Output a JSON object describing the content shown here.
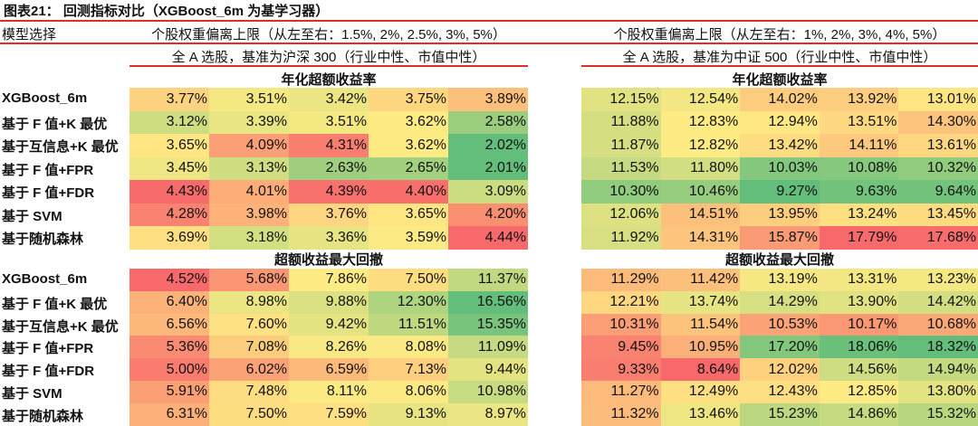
{
  "title": "图表21：  回测指标对比（XGBoost_6m 为基学习器）",
  "header": {
    "model_label": "模型选择",
    "left_limit": "个股权重偏离上限（从左至右：1.5%, 2%, 2.5%, 3%, 5%）",
    "right_limit": "个股权重偏离上限（从左至右：1%, 2%, 3%, 4%, 5%）",
    "left_benchmark": "全 A 选股，基准为沪深 300（行业中性、市值中性）",
    "right_benchmark": "全 A 选股，基准为中证 500（行业中性、市值中性）"
  },
  "models": [
    "XGBoost_6m",
    "基于 F 值+K 最优",
    "基于互信息+K 最优",
    "基于 F 值+FPR",
    "基于 F 值+FDR",
    "基于 SVM",
    "基于随机森林"
  ],
  "colors": {
    "red": "#F8696B",
    "yellow": "#FFEB84",
    "green": "#63BE7B",
    "rule": "#D9302C"
  },
  "sections": [
    {
      "title": "年化超额收益率",
      "high_color": "red",
      "left": [
        [
          "3.77%",
          "3.51%",
          "3.42%",
          "3.75%",
          "3.89%"
        ],
        [
          "3.12%",
          "3.39%",
          "3.51%",
          "3.62%",
          "2.58%"
        ],
        [
          "3.65%",
          "4.09%",
          "4.31%",
          "3.62%",
          "2.02%"
        ],
        [
          "3.45%",
          "3.13%",
          "2.63%",
          "2.65%",
          "2.01%"
        ],
        [
          "4.43%",
          "4.01%",
          "4.39%",
          "4.40%",
          "3.09%"
        ],
        [
          "4.28%",
          "3.98%",
          "3.76%",
          "3.65%",
          "4.20%"
        ],
        [
          "3.69%",
          "3.18%",
          "3.36%",
          "3.59%",
          "4.44%"
        ]
      ],
      "right": [
        [
          "12.15%",
          "12.54%",
          "14.02%",
          "13.92%",
          "13.01%"
        ],
        [
          "11.88%",
          "12.83%",
          "12.94%",
          "13.51%",
          "14.30%"
        ],
        [
          "11.87%",
          "12.82%",
          "13.42%",
          "14.11%",
          "13.61%"
        ],
        [
          "11.53%",
          "11.80%",
          "10.03%",
          "10.08%",
          "10.32%"
        ],
        [
          "10.30%",
          "10.46%",
          "9.27%",
          "9.63%",
          "9.64%"
        ],
        [
          "12.06%",
          "14.51%",
          "13.95%",
          "13.24%",
          "13.45%"
        ],
        [
          "11.92%",
          "14.31%",
          "15.87%",
          "17.79%",
          "17.68%"
        ]
      ]
    },
    {
      "title": "超额收益最大回撤",
      "high_color": "green",
      "left": [
        [
          "4.52%",
          "5.68%",
          "7.86%",
          "7.50%",
          "11.37%"
        ],
        [
          "6.40%",
          "8.98%",
          "9.88%",
          "12.30%",
          "16.56%"
        ],
        [
          "6.56%",
          "7.60%",
          "9.42%",
          "11.51%",
          "15.35%"
        ],
        [
          "5.36%",
          "7.08%",
          "8.26%",
          "8.08%",
          "11.09%"
        ],
        [
          "5.00%",
          "6.02%",
          "6.59%",
          "7.13%",
          "9.44%"
        ],
        [
          "5.91%",
          "7.48%",
          "8.11%",
          "8.06%",
          "10.98%"
        ],
        [
          "6.31%",
          "7.50%",
          "7.59%",
          "9.13%",
          "8.97%"
        ]
      ],
      "right": [
        [
          "11.29%",
          "11.42%",
          "13.19%",
          "13.31%",
          "13.23%"
        ],
        [
          "12.21%",
          "13.74%",
          "14.29%",
          "13.90%",
          "14.42%"
        ],
        [
          "10.31%",
          "11.54%",
          "10.53%",
          "10.17%",
          "10.68%"
        ],
        [
          "9.45%",
          "10.95%",
          "17.20%",
          "18.06%",
          "18.32%"
        ],
        [
          "9.33%",
          "8.64%",
          "12.02%",
          "14.56%",
          "14.94%"
        ],
        [
          "11.27%",
          "12.49%",
          "12.43%",
          "12.85%",
          "13.80%"
        ],
        [
          "11.32%",
          "13.46%",
          "15.23%",
          "14.86%",
          "15.32%"
        ]
      ]
    }
  ]
}
